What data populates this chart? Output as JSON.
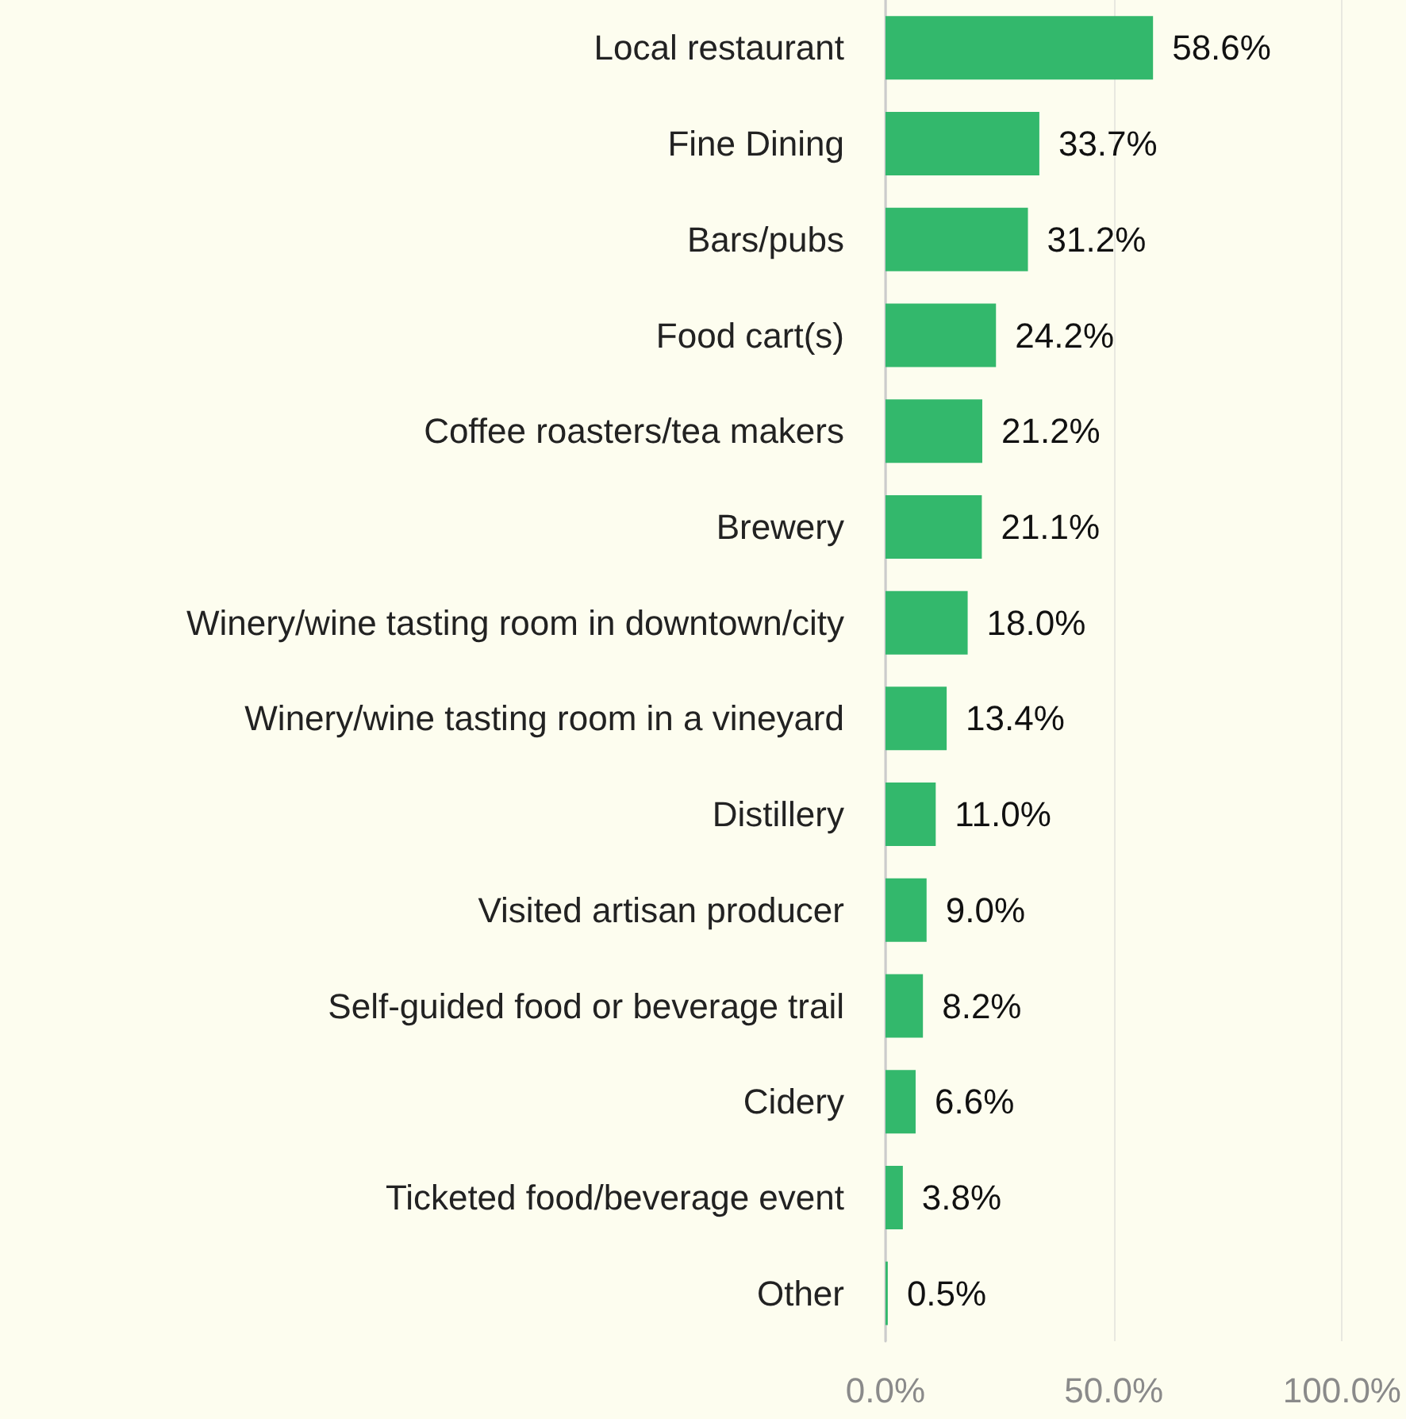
{
  "chart_data": {
    "type": "bar",
    "orientation": "horizontal",
    "categories": [
      "Local restaurant",
      "Fine Dining",
      "Bars/pubs",
      "Food cart(s)",
      "Coffee roasters/tea makers",
      "Brewery",
      "Winery/wine tasting room in downtown/city",
      "Winery/wine tasting room in a vineyard",
      "Distillery",
      "Visited artisan producer",
      "Self-guided food or beverage trail",
      "Cidery",
      "Ticketed food/beverage event",
      "Other"
    ],
    "values": [
      58.6,
      33.7,
      31.2,
      24.2,
      21.2,
      21.1,
      18.0,
      13.4,
      11.0,
      9.0,
      8.2,
      6.6,
      3.8,
      0.5
    ],
    "value_labels": [
      "58.6%",
      "33.7%",
      "31.2%",
      "24.2%",
      "21.2%",
      "21.1%",
      "18.0%",
      "13.4%",
      "11.0%",
      "9.0%",
      "8.2%",
      "6.6%",
      "3.8%",
      "0.5%"
    ],
    "color": "#33b86c",
    "xlim": [
      0,
      100
    ],
    "xticks": [
      {
        "value": 0,
        "label": "0.0%"
      },
      {
        "value": 50,
        "label": "50.0%"
      },
      {
        "value": 100,
        "label": "100.0%"
      }
    ],
    "grid": "x"
  }
}
